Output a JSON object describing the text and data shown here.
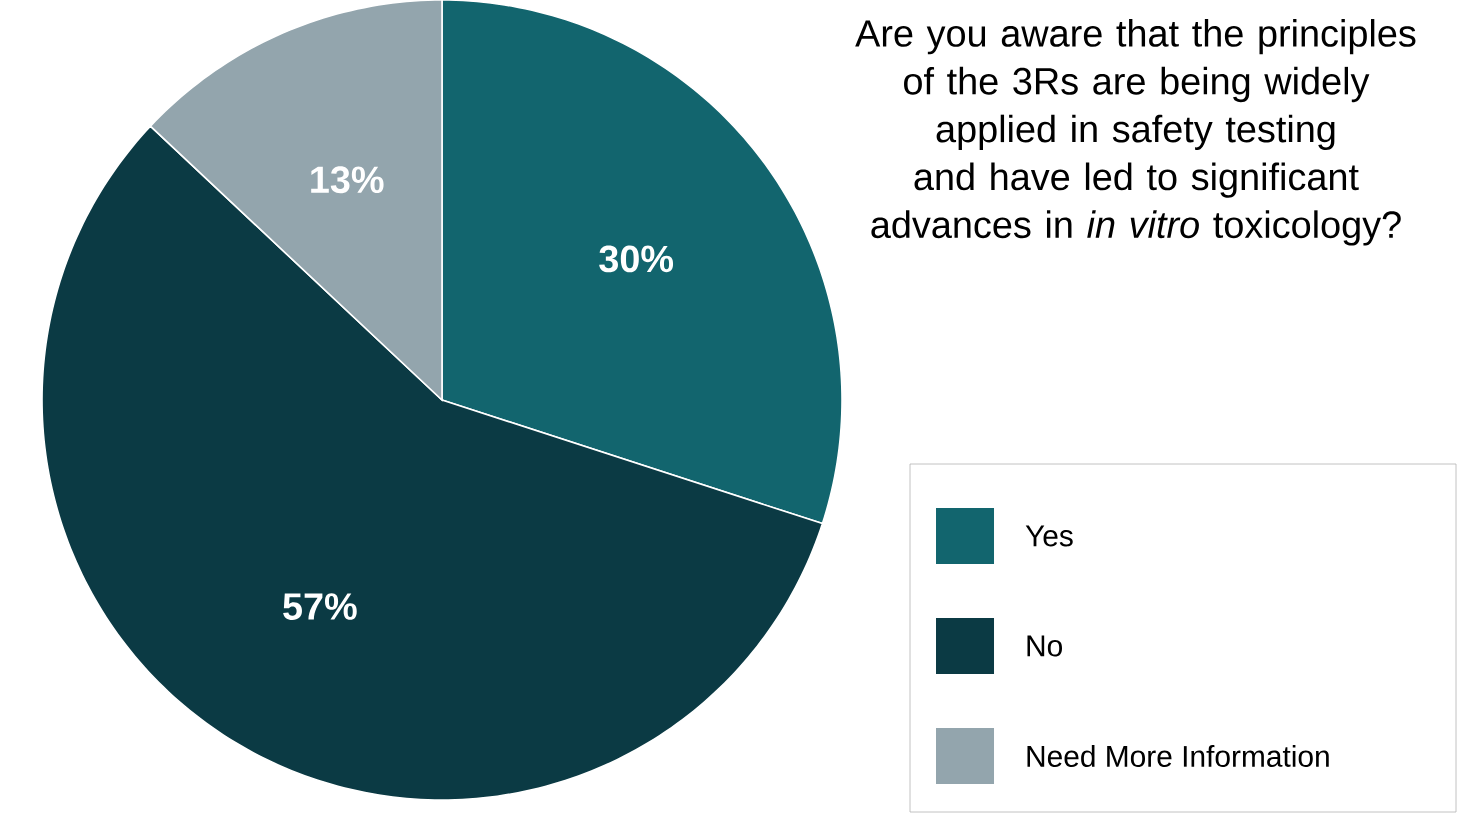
{
  "chart_data": {
    "type": "pie",
    "title": "Are you aware that the principles of the 3Rs are being widely applied in safety testing and have led to significant advances in *in vitro* toxicology?",
    "categories": [
      "Yes",
      "No",
      "Need More Information"
    ],
    "values": [
      30,
      57,
      13
    ],
    "colors": [
      "#12656e",
      "#0b3a44",
      "#93a5ad"
    ],
    "value_labels": [
      "30%",
      "57%",
      "13%"
    ],
    "legend": "right"
  }
}
